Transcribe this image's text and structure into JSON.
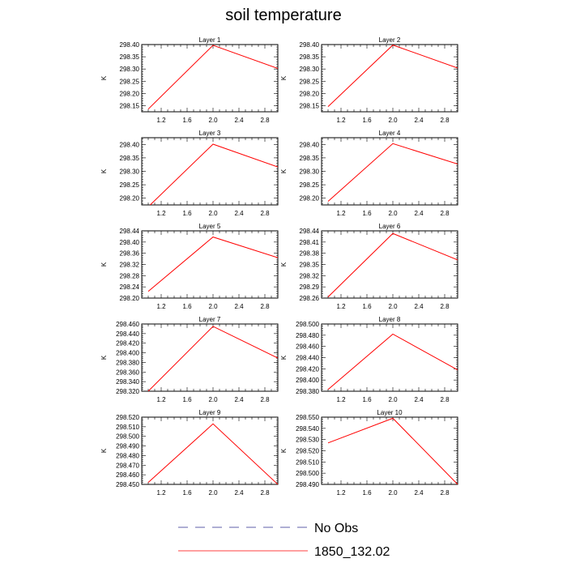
{
  "title": "soil temperature",
  "legend": {
    "items": [
      {
        "label": "No Obs",
        "color": "#2b2b8c",
        "style": "dashed"
      },
      {
        "label": "1850_132.02",
        "color": "#ff0000",
        "style": "solid"
      }
    ]
  },
  "chart_data": [
    {
      "type": "line",
      "title": "Layer 1",
      "ylabel": "K",
      "x": [
        1.0,
        2.0,
        3.0
      ],
      "xlim": [
        0.9,
        3.0
      ],
      "xticks": [
        "1.2",
        "1.6",
        "2.0",
        "2.4",
        "2.8"
      ],
      "ylim": [
        298.125,
        298.4
      ],
      "yticks": [
        "298.15",
        "298.20",
        "298.25",
        "298.30",
        "298.35",
        "298.40"
      ],
      "series": [
        {
          "name": "1850_132.02",
          "values": [
            298.136,
            298.397,
            298.302
          ]
        }
      ]
    },
    {
      "type": "line",
      "title": "Layer 2",
      "ylabel": "K",
      "x": [
        1.0,
        2.0,
        3.0
      ],
      "xlim": [
        0.9,
        3.0
      ],
      "xticks": [
        "1.2",
        "1.6",
        "2.0",
        "2.4",
        "2.8"
      ],
      "ylim": [
        298.125,
        298.4
      ],
      "yticks": [
        "298.15",
        "298.20",
        "298.25",
        "298.30",
        "298.35",
        "298.40"
      ],
      "series": [
        {
          "name": "1850_132.02",
          "values": [
            298.146,
            298.398,
            298.304
          ]
        }
      ]
    },
    {
      "type": "line",
      "title": "Layer 3",
      "ylabel": "K",
      "x": [
        1.0,
        2.0,
        3.0
      ],
      "xlim": [
        0.9,
        3.0
      ],
      "xticks": [
        "1.2",
        "1.6",
        "2.0",
        "2.4",
        "2.8"
      ],
      "ylim": [
        298.175,
        298.425
      ],
      "yticks": [
        "298.20",
        "298.25",
        "298.30",
        "298.35",
        "298.40"
      ],
      "series": [
        {
          "name": "1850_132.02",
          "values": [
            298.168,
            298.401,
            298.316
          ]
        }
      ]
    },
    {
      "type": "line",
      "title": "Layer 4",
      "ylabel": "K",
      "x": [
        1.0,
        2.0,
        3.0
      ],
      "xlim": [
        0.9,
        3.0
      ],
      "xticks": [
        "1.2",
        "1.6",
        "2.0",
        "2.4",
        "2.8"
      ],
      "ylim": [
        298.175,
        298.425
      ],
      "yticks": [
        "298.20",
        "298.25",
        "298.30",
        "298.35",
        "298.40"
      ],
      "series": [
        {
          "name": "1850_132.02",
          "values": [
            298.188,
            298.403,
            298.327
          ]
        }
      ]
    },
    {
      "type": "line",
      "title": "Layer 5",
      "ylabel": "K",
      "x": [
        1.0,
        2.0,
        3.0
      ],
      "xlim": [
        0.9,
        3.0
      ],
      "xticks": [
        "1.2",
        "1.6",
        "2.0",
        "2.4",
        "2.8"
      ],
      "ylim": [
        298.2,
        298.44
      ],
      "yticks": [
        "298.20",
        "298.24",
        "298.28",
        "298.32",
        "298.36",
        "298.40",
        "298.44"
      ],
      "series": [
        {
          "name": "1850_132.02",
          "values": [
            298.224,
            298.418,
            298.344
          ]
        }
      ]
    },
    {
      "type": "line",
      "title": "Layer 6",
      "ylabel": "K",
      "x": [
        1.0,
        2.0,
        3.0
      ],
      "xlim": [
        0.9,
        3.0
      ],
      "xticks": [
        "1.2",
        "1.6",
        "2.0",
        "2.4",
        "2.8"
      ],
      "ylim": [
        298.26,
        298.44
      ],
      "yticks": [
        "298.26",
        "298.29",
        "298.32",
        "298.35",
        "298.38",
        "298.41",
        "298.44"
      ],
      "series": [
        {
          "name": "1850_132.02",
          "values": [
            298.263,
            298.433,
            298.362
          ]
        }
      ]
    },
    {
      "type": "line",
      "title": "Layer 7",
      "ylabel": "K",
      "x": [
        1.0,
        2.0,
        3.0
      ],
      "xlim": [
        0.9,
        3.0
      ],
      "xticks": [
        "1.2",
        "1.6",
        "2.0",
        "2.4",
        "2.8"
      ],
      "ylim": [
        298.32,
        298.46
      ],
      "yticks": [
        "298.320",
        "298.340",
        "298.360",
        "298.380",
        "298.400",
        "298.420",
        "298.440",
        "298.460"
      ],
      "series": [
        {
          "name": "1850_132.02",
          "values": [
            298.32,
            298.455,
            298.389
          ]
        }
      ]
    },
    {
      "type": "line",
      "title": "Layer 8",
      "ylabel": "K",
      "x": [
        1.0,
        2.0,
        3.0
      ],
      "xlim": [
        0.9,
        3.0
      ],
      "xticks": [
        "1.2",
        "1.6",
        "2.0",
        "2.4",
        "2.8"
      ],
      "ylim": [
        298.38,
        298.5
      ],
      "yticks": [
        "298.380",
        "298.400",
        "298.420",
        "298.440",
        "298.460",
        "298.480",
        "298.500"
      ],
      "series": [
        {
          "name": "1850_132.02",
          "values": [
            298.383,
            298.482,
            298.418
          ]
        }
      ]
    },
    {
      "type": "line",
      "title": "Layer 9",
      "ylabel": "K",
      "x": [
        1.0,
        2.0,
        3.0
      ],
      "xlim": [
        0.9,
        3.0
      ],
      "xticks": [
        "1.2",
        "1.6",
        "2.0",
        "2.4",
        "2.8"
      ],
      "ylim": [
        298.45,
        298.52
      ],
      "yticks": [
        "298.450",
        "298.460",
        "298.470",
        "298.480",
        "298.490",
        "298.500",
        "298.510",
        "298.520"
      ],
      "series": [
        {
          "name": "1850_132.02",
          "values": [
            298.452,
            298.513,
            298.45
          ]
        }
      ]
    },
    {
      "type": "line",
      "title": "Layer 10",
      "ylabel": "K",
      "x": [
        1.0,
        2.0,
        3.0
      ],
      "xlim": [
        0.9,
        3.0
      ],
      "xticks": [
        "1.2",
        "1.6",
        "2.0",
        "2.4",
        "2.8"
      ],
      "ylim": [
        298.49,
        298.55
      ],
      "yticks": [
        "298.490",
        "298.500",
        "298.510",
        "298.520",
        "298.530",
        "298.540",
        "298.550"
      ],
      "series": [
        {
          "name": "1850_132.02",
          "values": [
            298.527,
            298.549,
            298.49
          ]
        }
      ]
    }
  ]
}
